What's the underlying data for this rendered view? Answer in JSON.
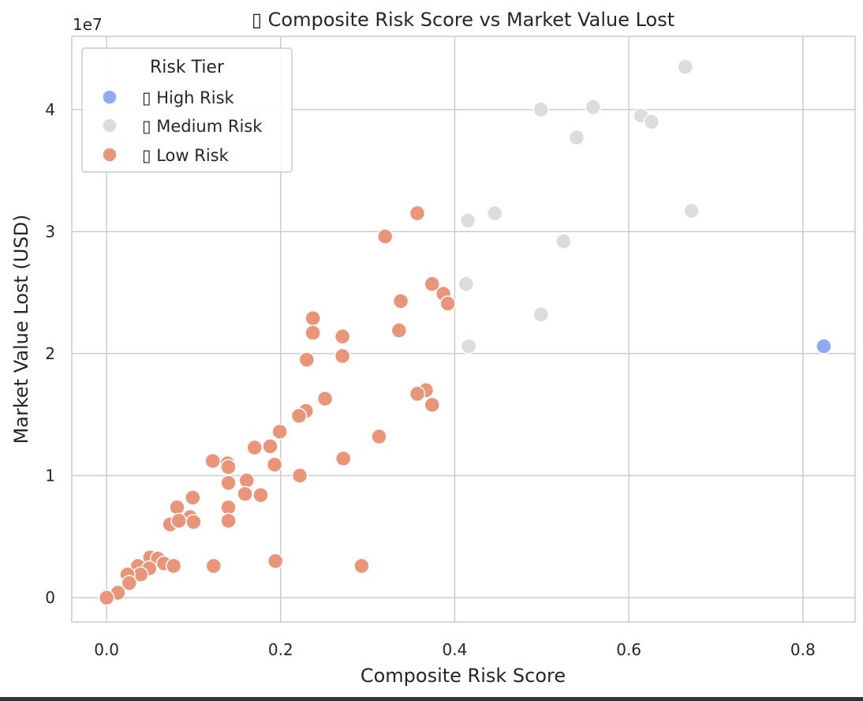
{
  "chart_data": {
    "type": "scatter",
    "title": "▯ Composite Risk Score vs Market Value Lost",
    "xlabel": "Composite Risk Score",
    "ylabel": "Market Value Lost (USD)",
    "offset_label": "1e7",
    "xlim": [
      -0.04,
      0.86
    ],
    "ylim": [
      -0.2,
      4.6
    ],
    "x_ticks": [
      0.0,
      0.2,
      0.4,
      0.6,
      0.8
    ],
    "x_tick_labels": [
      "0.0",
      "0.2",
      "0.4",
      "0.6",
      "0.8"
    ],
    "y_ticks": [
      0,
      1,
      2,
      3,
      4
    ],
    "y_tick_labels": [
      "0",
      "1",
      "2",
      "3",
      "4"
    ],
    "grid": true,
    "legend": {
      "title": "Risk Tier",
      "position": "top-left",
      "entries": [
        {
          "label": "▯ High Risk",
          "series": "high"
        },
        {
          "label": "▯ Medium Risk",
          "series": "medium"
        },
        {
          "label": "▯ Low Risk",
          "series": "low"
        }
      ]
    },
    "series": [
      {
        "name": "High Risk",
        "key": "high",
        "color": "#8eaaf0",
        "points": [
          [
            0.824,
            2.06
          ]
        ]
      },
      {
        "name": "Medium Risk",
        "key": "medium",
        "color": "#dcdcdc",
        "points": [
          [
            0.665,
            4.35
          ],
          [
            0.499,
            4.0
          ],
          [
            0.559,
            4.02
          ],
          [
            0.614,
            3.95
          ],
          [
            0.626,
            3.9
          ],
          [
            0.54,
            3.77
          ],
          [
            0.672,
            3.17
          ],
          [
            0.446,
            3.15
          ],
          [
            0.415,
            3.09
          ],
          [
            0.525,
            2.92
          ],
          [
            0.413,
            2.57
          ],
          [
            0.499,
            2.32
          ],
          [
            0.416,
            2.06
          ]
        ]
      },
      {
        "name": "Low Risk",
        "key": "low",
        "color": "#e8957a",
        "points": [
          [
            0.357,
            3.15
          ],
          [
            0.32,
            2.96
          ],
          [
            0.374,
            2.57
          ],
          [
            0.387,
            2.49
          ],
          [
            0.338,
            2.43
          ],
          [
            0.392,
            2.41
          ],
          [
            0.237,
            2.29
          ],
          [
            0.237,
            2.17
          ],
          [
            0.271,
            2.14
          ],
          [
            0.336,
            2.19
          ],
          [
            0.271,
            1.98
          ],
          [
            0.23,
            1.95
          ],
          [
            0.367,
            1.7
          ],
          [
            0.357,
            1.67
          ],
          [
            0.374,
            1.58
          ],
          [
            0.251,
            1.63
          ],
          [
            0.229,
            1.53
          ],
          [
            0.221,
            1.49
          ],
          [
            0.199,
            1.36
          ],
          [
            0.313,
            1.32
          ],
          [
            0.17,
            1.23
          ],
          [
            0.188,
            1.24
          ],
          [
            0.122,
            1.12
          ],
          [
            0.139,
            1.1
          ],
          [
            0.14,
            1.07
          ],
          [
            0.272,
            1.14
          ],
          [
            0.193,
            1.09
          ],
          [
            0.222,
            1.0
          ],
          [
            0.14,
            0.94
          ],
          [
            0.161,
            0.96
          ],
          [
            0.159,
            0.85
          ],
          [
            0.177,
            0.84
          ],
          [
            0.099,
            0.82
          ],
          [
            0.081,
            0.74
          ],
          [
            0.14,
            0.74
          ],
          [
            0.096,
            0.66
          ],
          [
            0.1,
            0.62
          ],
          [
            0.073,
            0.6
          ],
          [
            0.083,
            0.63
          ],
          [
            0.14,
            0.63
          ],
          [
            0.05,
            0.33
          ],
          [
            0.059,
            0.32
          ],
          [
            0.066,
            0.28
          ],
          [
            0.077,
            0.26
          ],
          [
            0.036,
            0.26
          ],
          [
            0.049,
            0.24
          ],
          [
            0.123,
            0.26
          ],
          [
            0.194,
            0.3
          ],
          [
            0.293,
            0.26
          ],
          [
            0.039,
            0.19
          ],
          [
            0.024,
            0.19
          ],
          [
            0.026,
            0.12
          ],
          [
            0.013,
            0.04
          ],
          [
            0.0,
            0.0
          ]
        ]
      }
    ]
  }
}
